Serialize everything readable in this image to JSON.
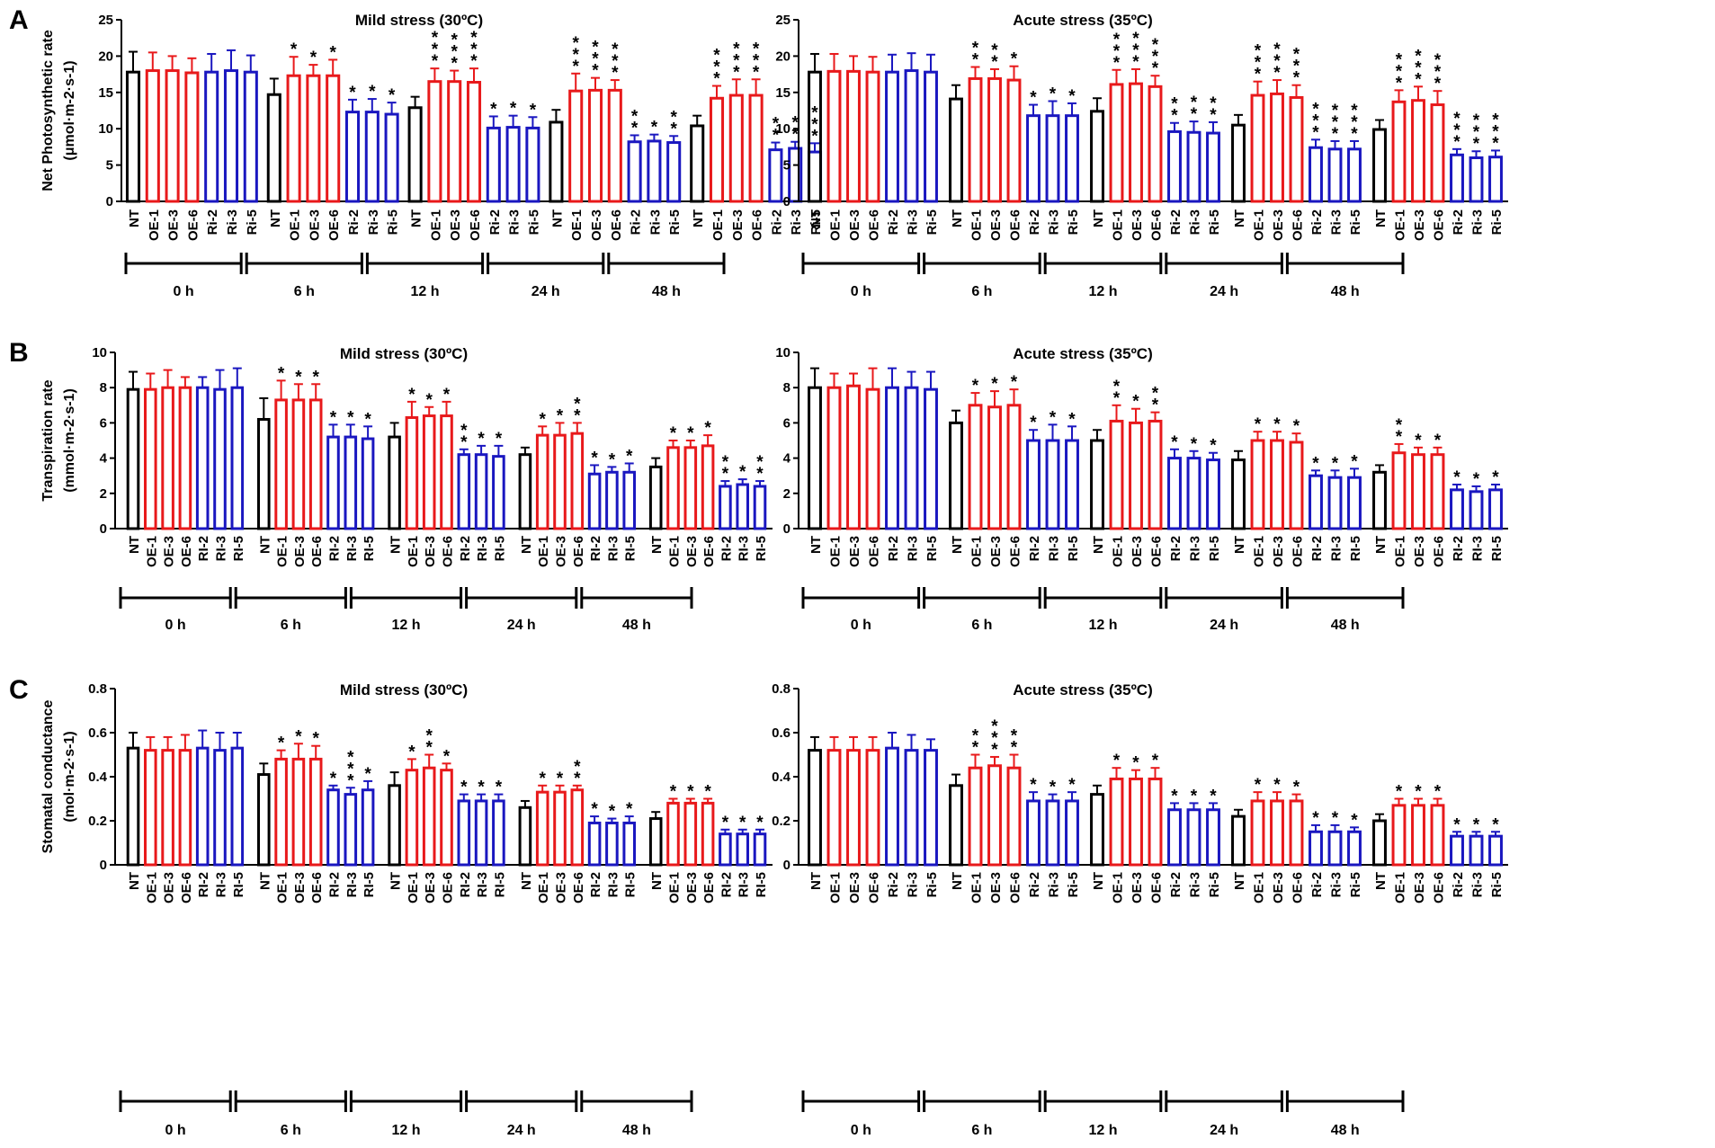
{
  "colors": {
    "NT": "#000000",
    "OE": "#e8191b",
    "Ri": "#1a17c0",
    "axis": "#000000"
  },
  "chart_data": [
    {
      "type": "bar",
      "panel": "A",
      "title": "Mild stress (30ºC)",
      "ylabel": "Net Photosynthetic rate",
      "ylabel_unit": "(μmol·m-2·s-1)",
      "ylim": [
        0,
        25
      ],
      "yticks": [
        0,
        5,
        10,
        15,
        20,
        25
      ],
      "categories": [
        "NT",
        "OE-1",
        "OE-3",
        "OE-6",
        "Ri-2",
        "Ri-3",
        "Ri-5"
      ],
      "groups": [
        {
          "label": "0 h",
          "values": [
            17.8,
            18.0,
            18.0,
            17.7,
            17.8,
            18.0,
            17.8
          ],
          "errors": [
            2.8,
            2.5,
            2.0,
            2.0,
            2.5,
            2.8,
            2.3
          ],
          "stars": [
            "",
            "",
            "",
            "",
            "",
            "",
            ""
          ]
        },
        {
          "label": "6 h",
          "values": [
            14.7,
            17.3,
            17.3,
            17.3,
            12.3,
            12.3,
            12.0
          ],
          "errors": [
            2.2,
            2.6,
            1.5,
            2.2,
            1.7,
            1.8,
            1.6
          ],
          "stars": [
            "",
            "*",
            "*",
            "*",
            "*",
            "*",
            "*"
          ]
        },
        {
          "label": "12 h",
          "values": [
            12.9,
            16.5,
            16.5,
            16.4,
            10.1,
            10.2,
            10.1
          ],
          "errors": [
            1.5,
            1.8,
            1.5,
            1.9,
            1.6,
            1.6,
            1.5
          ],
          "stars": [
            "",
            "***",
            "***",
            "***",
            "*",
            "*",
            "*"
          ]
        },
        {
          "label": "24 h",
          "values": [
            10.9,
            15.2,
            15.3,
            15.3,
            8.2,
            8.3,
            8.1
          ],
          "errors": [
            1.7,
            2.4,
            1.7,
            1.4,
            0.9,
            0.9,
            0.9
          ],
          "stars": [
            "",
            "***",
            "***",
            "***",
            "**",
            "*",
            "**"
          ]
        },
        {
          "label": "48 h",
          "values": [
            10.4,
            14.2,
            14.6,
            14.6,
            7.1,
            7.3,
            6.8
          ],
          "errors": [
            1.4,
            1.7,
            2.2,
            2.2,
            1.0,
            0.9,
            1.2
          ],
          "stars": [
            "",
            "***",
            "***",
            "***",
            "**",
            "**",
            "***"
          ]
        }
      ]
    },
    {
      "type": "bar",
      "panel": "",
      "title": "Acute stress (35ºC)",
      "ylabel": "",
      "ylabel_unit": "",
      "ylim": [
        0,
        25
      ],
      "yticks": [
        0,
        5,
        10,
        15,
        20,
        25
      ],
      "categories": [
        "NT",
        "OE-1",
        "OE-3",
        "OE-6",
        "Ri-2",
        "Ri-3",
        "Ri-5"
      ],
      "groups": [
        {
          "label": "0 h",
          "values": [
            17.8,
            17.9,
            17.9,
            17.8,
            17.8,
            18.0,
            17.8
          ],
          "errors": [
            2.5,
            2.4,
            2.1,
            2.1,
            2.4,
            2.4,
            2.4
          ],
          "stars": [
            "",
            "",
            "",
            "",
            "",
            "",
            ""
          ]
        },
        {
          "label": "6 h",
          "values": [
            14.1,
            16.9,
            16.9,
            16.7,
            11.8,
            11.8,
            11.8
          ],
          "errors": [
            1.9,
            1.6,
            1.3,
            1.9,
            1.5,
            2.0,
            1.7
          ],
          "stars": [
            "",
            "**",
            "**",
            "*",
            "*",
            "*",
            "*"
          ]
        },
        {
          "label": "12 h",
          "values": [
            12.4,
            16.1,
            16.2,
            15.8,
            9.6,
            9.5,
            9.4
          ],
          "errors": [
            1.8,
            2.0,
            2.0,
            1.5,
            1.2,
            1.5,
            1.5
          ],
          "stars": [
            "",
            "***",
            "***",
            "***",
            "**",
            "**",
            "**"
          ]
        },
        {
          "label": "24 h",
          "values": [
            10.5,
            14.6,
            14.8,
            14.3,
            7.4,
            7.2,
            7.2
          ],
          "errors": [
            1.4,
            1.9,
            1.9,
            1.7,
            1.1,
            1.1,
            1.1
          ],
          "stars": [
            "",
            "***",
            "***",
            "***",
            "***",
            "***",
            "***"
          ]
        },
        {
          "label": "48 h",
          "values": [
            9.9,
            13.7,
            13.9,
            13.3,
            6.4,
            6.0,
            6.1
          ],
          "errors": [
            1.3,
            1.6,
            1.9,
            1.9,
            0.8,
            0.9,
            0.9
          ],
          "stars": [
            "",
            "***",
            "***",
            "***",
            "***",
            "***",
            "***"
          ]
        }
      ]
    },
    {
      "type": "bar",
      "panel": "B",
      "title": "Mild stress (30ºC)",
      "ylabel": "Transpiration rate",
      "ylabel_unit": "(mmol·m-2·s-1)",
      "ylim": [
        0,
        10
      ],
      "yticks": [
        0,
        2,
        4,
        6,
        8,
        10
      ],
      "categories": [
        "NT",
        "OE-1",
        "OE-3",
        "OE-6",
        "RI-2",
        "RI-3",
        "RI-5"
      ],
      "groups": [
        {
          "label": "0 h",
          "values": [
            7.9,
            7.9,
            8.0,
            8.0,
            8.0,
            7.9,
            8.0
          ],
          "errors": [
            1.0,
            0.9,
            1.0,
            0.6,
            0.6,
            1.1,
            1.1
          ],
          "stars": [
            "",
            "",
            "",
            "",
            "",
            "",
            ""
          ]
        },
        {
          "label": "6 h",
          "values": [
            6.2,
            7.3,
            7.3,
            7.3,
            5.2,
            5.2,
            5.1
          ],
          "errors": [
            1.2,
            1.1,
            0.9,
            0.9,
            0.7,
            0.7,
            0.7
          ],
          "stars": [
            "",
            "*",
            "*",
            "*",
            "*",
            "*",
            "*"
          ]
        },
        {
          "label": "12 h",
          "values": [
            5.2,
            6.3,
            6.4,
            6.4,
            4.2,
            4.2,
            4.1
          ],
          "errors": [
            0.8,
            0.9,
            0.5,
            0.8,
            0.3,
            0.5,
            0.6
          ],
          "stars": [
            "",
            "*",
            "*",
            "*",
            "**",
            "*",
            "*"
          ]
        },
        {
          "label": "24 h",
          "values": [
            4.2,
            5.3,
            5.3,
            5.4,
            3.1,
            3.2,
            3.2
          ],
          "errors": [
            0.4,
            0.5,
            0.7,
            0.6,
            0.5,
            0.3,
            0.5
          ],
          "stars": [
            "",
            "*",
            "*",
            "**",
            "*",
            "*",
            "*"
          ]
        },
        {
          "label": "48 h",
          "values": [
            3.5,
            4.6,
            4.6,
            4.7,
            2.4,
            2.5,
            2.4
          ],
          "errors": [
            0.5,
            0.4,
            0.4,
            0.6,
            0.3,
            0.3,
            0.3
          ],
          "stars": [
            "",
            "*",
            "*",
            "*",
            "**",
            "*",
            "**"
          ]
        }
      ]
    },
    {
      "type": "bar",
      "panel": "",
      "title": "Acute stress (35ºC)",
      "ylabel": "",
      "ylabel_unit": "",
      "ylim": [
        0,
        10
      ],
      "yticks": [
        0,
        2,
        4,
        6,
        8,
        10
      ],
      "categories": [
        "NT",
        "OE-1",
        "OE-3",
        "OE-6",
        "RI-2",
        "RI-3",
        "RI-5"
      ],
      "groups": [
        {
          "label": "0 h",
          "values": [
            8.0,
            8.0,
            8.1,
            7.9,
            8.0,
            8.0,
            7.9
          ],
          "errors": [
            1.1,
            0.8,
            0.7,
            1.2,
            1.1,
            0.9,
            1.0
          ],
          "stars": [
            "",
            "",
            "",
            "",
            "",
            "",
            ""
          ]
        },
        {
          "label": "6 h",
          "values": [
            6.0,
            7.0,
            6.9,
            7.0,
            5.0,
            5.0,
            5.0
          ],
          "errors": [
            0.7,
            0.7,
            0.9,
            0.9,
            0.6,
            0.9,
            0.8
          ],
          "stars": [
            "",
            "*",
            "*",
            "*",
            "*",
            "*",
            "*"
          ]
        },
        {
          "label": "12 h",
          "values": [
            5.0,
            6.1,
            6.0,
            6.1,
            4.0,
            4.0,
            3.9
          ],
          "errors": [
            0.6,
            0.9,
            0.8,
            0.5,
            0.5,
            0.4,
            0.4
          ],
          "stars": [
            "",
            "**",
            "*",
            "**",
            "*",
            "*",
            "*"
          ]
        },
        {
          "label": "24 h",
          "values": [
            3.9,
            5.0,
            5.0,
            4.9,
            3.0,
            2.9,
            2.9
          ],
          "errors": [
            0.5,
            0.5,
            0.5,
            0.5,
            0.3,
            0.4,
            0.5
          ],
          "stars": [
            "",
            "*",
            "*",
            "*",
            "*",
            "*",
            "*"
          ]
        },
        {
          "label": "48 h",
          "values": [
            3.2,
            4.3,
            4.2,
            4.2,
            2.2,
            2.1,
            2.2
          ],
          "errors": [
            0.4,
            0.5,
            0.4,
            0.4,
            0.3,
            0.3,
            0.3
          ],
          "stars": [
            "",
            "**",
            "*",
            "*",
            "*",
            "*",
            "*"
          ]
        }
      ]
    },
    {
      "type": "bar",
      "panel": "C",
      "title": "Mild stress (30ºC)",
      "ylabel": "Stomatal conductance",
      "ylabel_unit": "(mol·m-2·s-1)",
      "ylim": [
        0,
        0.8
      ],
      "yticks": [
        0.0,
        0.2,
        0.4,
        0.6,
        0.8
      ],
      "categories": [
        "NT",
        "OE-1",
        "OE-3",
        "OE-6",
        "RI-2",
        "RI-3",
        "RI-5"
      ],
      "groups": [
        {
          "label": "0 h",
          "values": [
            0.53,
            0.52,
            0.52,
            0.52,
            0.53,
            0.52,
            0.53
          ],
          "errors": [
            0.07,
            0.06,
            0.06,
            0.07,
            0.08,
            0.08,
            0.07
          ],
          "stars": [
            "",
            "",
            "",
            "",
            "",
            "",
            ""
          ]
        },
        {
          "label": "6 h",
          "values": [
            0.41,
            0.48,
            0.48,
            0.48,
            0.34,
            0.32,
            0.34
          ],
          "errors": [
            0.05,
            0.04,
            0.07,
            0.06,
            0.02,
            0.03,
            0.04
          ],
          "stars": [
            "",
            "*",
            "*",
            "*",
            "*",
            "***",
            "*"
          ]
        },
        {
          "label": "12 h",
          "values": [
            0.36,
            0.43,
            0.44,
            0.43,
            0.29,
            0.29,
            0.29
          ],
          "errors": [
            0.06,
            0.05,
            0.06,
            0.03,
            0.03,
            0.03,
            0.03
          ],
          "stars": [
            "",
            "*",
            "**",
            "*",
            "*",
            "*",
            "*"
          ]
        },
        {
          "label": "24 h",
          "values": [
            0.26,
            0.33,
            0.33,
            0.34,
            0.19,
            0.19,
            0.19
          ],
          "errors": [
            0.03,
            0.03,
            0.03,
            0.02,
            0.03,
            0.02,
            0.03
          ],
          "stars": [
            "",
            "*",
            "*",
            "**",
            "*",
            "*",
            "*"
          ]
        },
        {
          "label": "48 h",
          "values": [
            0.21,
            0.28,
            0.28,
            0.28,
            0.14,
            0.14,
            0.14
          ],
          "errors": [
            0.03,
            0.02,
            0.02,
            0.02,
            0.02,
            0.02,
            0.02
          ],
          "stars": [
            "",
            "*",
            "*",
            "*",
            "*",
            "*",
            "*"
          ]
        }
      ]
    },
    {
      "type": "bar",
      "panel": "",
      "title": "Acute stress (35ºC)",
      "ylabel": "",
      "ylabel_unit": "",
      "ylim": [
        0,
        0.8
      ],
      "yticks": [
        0.0,
        0.2,
        0.4,
        0.6,
        0.8
      ],
      "categories": [
        "NT",
        "OE-1",
        "OE-3",
        "OE-6",
        "Ri-2",
        "Ri-3",
        "Ri-5"
      ],
      "groups": [
        {
          "label": "0 h",
          "values": [
            0.52,
            0.52,
            0.52,
            0.52,
            0.53,
            0.52,
            0.52
          ],
          "errors": [
            0.06,
            0.06,
            0.06,
            0.06,
            0.07,
            0.07,
            0.05
          ],
          "stars": [
            "",
            "",
            "",
            "",
            "",
            "",
            ""
          ]
        },
        {
          "label": "6 h",
          "values": [
            0.36,
            0.44,
            0.45,
            0.44,
            0.29,
            0.29,
            0.29
          ],
          "errors": [
            0.05,
            0.06,
            0.04,
            0.06,
            0.04,
            0.03,
            0.04
          ],
          "stars": [
            "",
            "**",
            "***",
            "**",
            "*",
            "*",
            "*"
          ]
        },
        {
          "label": "12 h",
          "values": [
            0.32,
            0.39,
            0.39,
            0.39,
            0.25,
            0.25,
            0.25
          ],
          "errors": [
            0.04,
            0.05,
            0.04,
            0.05,
            0.03,
            0.03,
            0.03
          ],
          "stars": [
            "",
            "*",
            "*",
            "*",
            "*",
            "*",
            "*"
          ]
        },
        {
          "label": "24 h",
          "values": [
            0.22,
            0.29,
            0.29,
            0.29,
            0.15,
            0.15,
            0.15
          ],
          "errors": [
            0.03,
            0.04,
            0.04,
            0.03,
            0.03,
            0.03,
            0.02
          ],
          "stars": [
            "",
            "*",
            "*",
            "*",
            "*",
            "*",
            "*"
          ]
        },
        {
          "label": "48 h",
          "values": [
            0.2,
            0.27,
            0.27,
            0.27,
            0.13,
            0.13,
            0.13
          ],
          "errors": [
            0.03,
            0.03,
            0.03,
            0.03,
            0.02,
            0.02,
            0.02
          ],
          "stars": [
            "",
            "*",
            "*",
            "*",
            "*",
            "*",
            "*"
          ]
        }
      ]
    }
  ]
}
